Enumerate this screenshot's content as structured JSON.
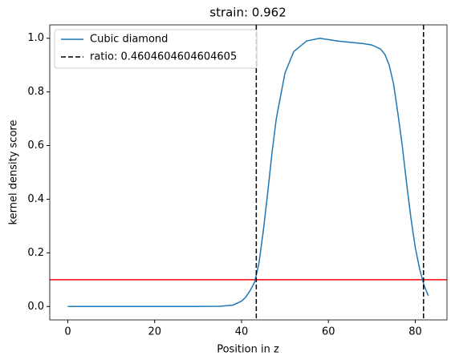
{
  "chart_data": {
    "type": "line",
    "title": "strain: 0.962",
    "x_label": "Position in z",
    "y_label": "kernel density score",
    "x": [
      0,
      5,
      10,
      15,
      20,
      25,
      30,
      35,
      38,
      40,
      41,
      42,
      43,
      44,
      45,
      46,
      47,
      48,
      50,
      52,
      55,
      58,
      60,
      62,
      65,
      68,
      70,
      72,
      73,
      74,
      75,
      76,
      77,
      78,
      79,
      80,
      81,
      82,
      83
    ],
    "series": [
      {
        "name": "Cubic diamond",
        "color": "#1f77b4",
        "values": [
          0,
          0,
          0,
          0,
          0,
          0,
          0,
          0.001,
          0.005,
          0.02,
          0.035,
          0.06,
          0.09,
          0.16,
          0.28,
          0.42,
          0.57,
          0.7,
          0.87,
          0.95,
          0.99,
          1.0,
          0.995,
          0.99,
          0.985,
          0.98,
          0.975,
          0.96,
          0.94,
          0.9,
          0.83,
          0.72,
          0.6,
          0.46,
          0.33,
          0.22,
          0.14,
          0.08,
          0.04
        ]
      }
    ],
    "vlines": {
      "name": "ratio: 0.4604604604604605",
      "color": "#000000",
      "values": [
        43.4,
        81.9
      ]
    },
    "hline": {
      "value": 0.1,
      "color": "#ff0000"
    },
    "xlim": [
      -4.15,
      87.3
    ],
    "ylim": [
      -0.05,
      1.05
    ],
    "xticks": [
      0,
      20,
      40,
      60,
      80
    ],
    "yticks": [
      {
        "value": 0,
        "label": "0.0"
      },
      {
        "value": 0.2,
        "label": "0.2"
      },
      {
        "value": 0.4,
        "label": "0.4"
      },
      {
        "value": 0.6,
        "label": "0.6"
      },
      {
        "value": 0.8,
        "label": "0.8"
      },
      {
        "value": 1,
        "label": "1.0"
      }
    ],
    "legend": "upper left"
  }
}
